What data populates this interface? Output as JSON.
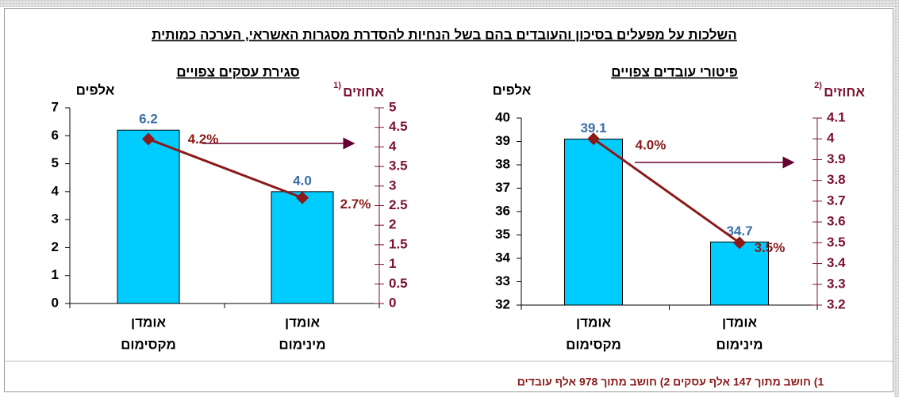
{
  "title": "השלכות על מפעלים בסיכון והעובדים בהם בשל הנחיות להסדרת מסגרות האשראי, הערכה כמותית",
  "footnote": "1) חושב מתוך 147 אלף עסקים  2) חושב מתוך 978 אלף עובדים",
  "chart_data": [
    {
      "type": "bar",
      "title": "סגירת עסקים צפויים",
      "y_label": "אלפים",
      "y2_label": "אחוזים",
      "y2_label_note": "1)",
      "categories": [
        [
          "אומדן",
          "מקסימום"
        ],
        [
          "אומדן",
          "מינימום"
        ]
      ],
      "series": [
        {
          "color": "#00ccff",
          "values": [
            6.2,
            4.0
          ],
          "value_labels": [
            "6.2",
            "4.0"
          ]
        },
        {
          "type": "line",
          "axis": "y2",
          "color": "#8b1a1a",
          "values": [
            4.2,
            2.7
          ],
          "value_labels": [
            "4.2%",
            "2.7%"
          ]
        }
      ],
      "ylim": [
        0,
        7
      ],
      "yticks": [
        0,
        1,
        2,
        3,
        4,
        5,
        6,
        7
      ],
      "y2lim": [
        0,
        5
      ],
      "y2ticks": [
        0,
        0.5,
        1,
        1.5,
        2,
        2.5,
        3,
        3.5,
        4,
        4.5,
        5
      ]
    },
    {
      "type": "bar",
      "title": "פיטורי עובדים צפויים",
      "y_label": "אלפים",
      "y2_label": "אחוזים",
      "y2_label_note": "2)",
      "categories": [
        [
          "אומדן",
          "מקסימום"
        ],
        [
          "אומדן",
          "מינימום"
        ]
      ],
      "series": [
        {
          "color": "#00ccff",
          "values": [
            39.1,
            34.7
          ],
          "value_labels": [
            "39.1",
            "34.7"
          ]
        },
        {
          "type": "line",
          "axis": "y2",
          "color": "#8b1a1a",
          "values": [
            4.0,
            3.5
          ],
          "value_labels": [
            "4.0%",
            "3.5%"
          ]
        }
      ],
      "ylim": [
        32,
        40
      ],
      "yticks": [
        32,
        33,
        34,
        35,
        36,
        37,
        38,
        39,
        40
      ],
      "y2lim": [
        3.2,
        4.1
      ],
      "y2ticks": [
        3.2,
        3.3,
        3.4,
        3.5,
        3.6,
        3.7,
        3.8,
        3.9,
        4,
        4.1
      ]
    }
  ]
}
